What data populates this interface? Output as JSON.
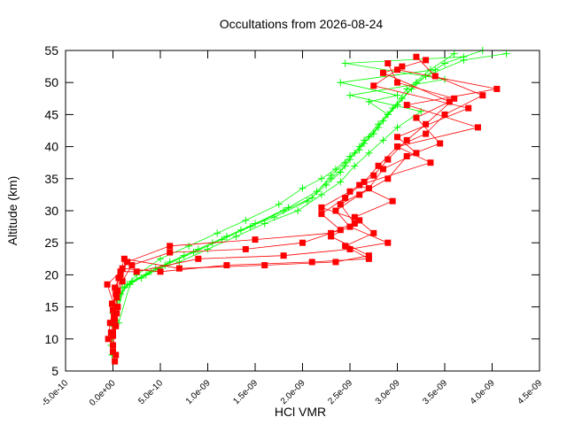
{
  "chart_data": {
    "type": "line",
    "title": "Occultations from 2026-08-24",
    "xlabel": "HCl VMR",
    "ylabel": "Altitude (km)",
    "xlim": [
      -5e-10,
      4.5e-09
    ],
    "ylim": [
      5,
      55
    ],
    "xticks": [
      "-5.0e-10",
      "0.0e+00",
      "5.0e-10",
      "1.0e-09",
      "1.5e-09",
      "2.0e-09",
      "2.5e-09",
      "3.0e-09",
      "3.5e-09",
      "4.0e-09",
      "4.5e-09"
    ],
    "xtick_values": [
      -5e-10,
      0,
      5e-10,
      1e-09,
      1.5e-09,
      2e-09,
      2.5e-09,
      3e-09,
      3.5e-09,
      4e-09,
      4.5e-09
    ],
    "yticks": [
      "5",
      "10",
      "15",
      "20",
      "25",
      "30",
      "35",
      "40",
      "45",
      "50",
      "55"
    ],
    "ytick_values": [
      5,
      10,
      15,
      20,
      25,
      30,
      35,
      40,
      45,
      50,
      55
    ],
    "grid": false,
    "legend": "none",
    "series": [
      {
        "marker": "plus",
        "color": "#00ff00",
        "profiles": [
          {
            "x": [
              -1e-11,
              0.0,
              5e-11,
              1.5e-10,
              3.5e-10,
              6e-10,
              9e-10,
              1.2e-09,
              1.5e-09,
              1.85e-09,
              2.15e-09,
              2.3e-09,
              2.45e-09,
              2.55e-09,
              2.65e-09,
              2.8e-09,
              2.95e-09,
              3.1e-09,
              3.35e-09,
              3.6e-09
            ],
            "y": [
              7.5,
              12,
              16,
              18.5,
              20,
              22,
              24,
              26,
              28,
              30.5,
              33,
              35,
              37,
              39,
              41,
              43.5,
              46,
              49,
              52,
              54.5
            ]
          },
          {
            "x": [
              0.0,
              8e-11,
              2e-10,
              4.5e-10,
              7.5e-10,
              1.05e-09,
              1.35e-09,
              1.7e-09,
              2.05e-09,
              2.25e-09,
              2.4e-09,
              2.5e-09,
              2.6e-09,
              2.75e-09,
              2.9e-09,
              3.05e-09,
              3.2e-09,
              3.5e-09,
              3.9e-09
            ],
            "y": [
              14,
              17,
              19,
              21,
              23,
              25,
              27,
              29,
              31.5,
              34,
              36,
              38,
              40,
              42,
              45,
              47.5,
              50,
              53,
              55
            ]
          },
          {
            "x": [
              -2e-11,
              1e-10,
              3e-10,
              5.5e-10,
              8.5e-10,
              1.15e-09,
              1.45e-09,
              1.8e-09,
              2.1e-09,
              2.3e-09,
              2.45e-09,
              2.6e-09,
              2.7e-09,
              2.85e-09,
              3e-09,
              3.15e-09,
              3.3e-09,
              3.7e-09,
              4.15e-09
            ],
            "y": [
              9,
              18,
              19.5,
              21.5,
              23.5,
              25.5,
              27.5,
              30,
              32,
              35.5,
              37.5,
              39.5,
              41.5,
              44,
              46.5,
              49,
              51,
              53.5,
              54.5
            ]
          },
          {
            "x": [
              2e-11,
              1.2e-10,
              2.5e-10,
              5e-10,
              8e-10,
              1.1e-09,
              1.4e-09,
              1.75e-09,
              2e-09,
              2.2e-09,
              2.35e-09,
              2.5e-09,
              2.65e-09,
              2.8e-09,
              2.9e-09,
              2.7e-09,
              3e-09,
              2.4e-09,
              3.4e-09
            ],
            "y": [
              13,
              18,
              20,
              22.5,
              24.5,
              26.5,
              28.5,
              31,
              33.5,
              35,
              36.5,
              38.5,
              40.5,
              43,
              45,
              47,
              48,
              50,
              52
            ]
          },
          {
            "x": [
              6e-11,
              1.8e-10,
              4e-10,
              7e-10,
              1e-09,
              1.3e-09,
              1.6e-09,
              1.95e-09,
              2.2e-09,
              2.4e-09,
              2.55e-09,
              2.7e-09,
              2.85e-09,
              3e-09,
              3.25e-09,
              2.5e-09,
              3.5e-09,
              2.45e-09,
              3.7e-09
            ],
            "y": [
              12.5,
              18.5,
              20.5,
              22,
              24,
              26,
              28,
              30,
              32.5,
              34.5,
              37,
              39,
              41,
              43,
              45.5,
              48,
              50.5,
              53,
              54
            ]
          }
        ]
      },
      {
        "marker": "square",
        "color": "#ff0000",
        "profiles": [
          {
            "x": [
              2e-11,
              0.0,
              3e-11,
              5e-11,
              2e-11,
              8e-11,
              1.5e-10,
              6e-10,
              1.5e-09,
              2.3e-09,
              2.6e-09,
              2.2e-09,
              2.5e-09,
              2.75e-09,
              2.9e-09,
              3.1e-09,
              3.3e-09,
              3.6e-09,
              3e-09,
              2.9e-09
            ],
            "y": [
              6.5,
              9,
              12,
              15,
              18,
              20,
              22,
              24.5,
              25.5,
              26.5,
              28.5,
              30.5,
              33,
              35.5,
              38,
              41,
              43.5,
              47.5,
              50,
              53
            ]
          },
          {
            "x": [
              0.0,
              -2e-11,
              1e-11,
              4e-11,
              1e-10,
              2e-10,
              6e-10,
              1.4e-09,
              2e-09,
              2.4e-09,
              2.2e-09,
              2.45e-09,
              2.65e-09,
              2.8e-09,
              3e-09,
              3.3e-09,
              3.5e-09,
              3.9e-09,
              3.4e-09,
              3.2e-09
            ],
            "y": [
              8,
              11,
              13.5,
              16.5,
              19,
              21.5,
              23.5,
              24,
              25,
              27,
              29.5,
              32,
              34.5,
              37,
              40,
              42,
              45,
              48,
              51,
              54
            ]
          },
          {
            "x": [
              -5e-11,
              -3e-11,
              0.0,
              3e-11,
              6e-11,
              1.2e-10,
              7e-10,
              1.6e-09,
              2.35e-09,
              2.7e-09,
              2.3e-09,
              2.55e-09,
              2.4e-09,
              2.7e-09,
              2.85e-09,
              3.2e-09,
              3e-09,
              3.75e-09,
              2.75e-09,
              3.05e-09
            ],
            "y": [
              10,
              12.5,
              14.5,
              17,
              19.5,
              22.5,
              21,
              21.5,
              22,
              23,
              26,
              28,
              31,
              33.5,
              36.5,
              39,
              41.5,
              46,
              49.5,
              52.5
            ]
          },
          {
            "x": [
              3e-11,
              0.0,
              4e-11,
              -6e-11,
              8e-11,
              2.5e-10,
              9e-10,
              1.8e-09,
              2.5e-09,
              2.9e-09,
              2.5e-09,
              2.35e-09,
              2.6e-09,
              2.9e-09,
              3.1e-09,
              3.45e-09,
              3.2e-09,
              3.55e-09,
              2.85e-09,
              3.3e-09
            ],
            "y": [
              7.5,
              10.5,
              14,
              18.5,
              20.5,
              20.5,
              22.5,
              23,
              24,
              25,
              27.5,
              30,
              32.5,
              35,
              38.5,
              40.5,
              44.5,
              47,
              51.5,
              53.5
            ]
          },
          {
            "x": [
              0.0,
              2e-11,
              -1e-11,
              5e-11,
              1e-10,
              5e-10,
              1.2e-09,
              2.1e-09,
              2.7e-09,
              2.45e-09,
              2.75e-09,
              2.55e-09,
              2.95e-09,
              2.6e-09,
              3.35e-09,
              3e-09,
              3.85e-09,
              3.1e-09,
              4.05e-09,
              3e-09
            ],
            "y": [
              11,
              13,
              15.5,
              17.5,
              21,
              20.5,
              21.5,
              22,
              22.5,
              24.5,
              26.5,
              29,
              31.5,
              34,
              37.5,
              40,
              43,
              46.5,
              49,
              52
            ]
          }
        ]
      }
    ]
  }
}
